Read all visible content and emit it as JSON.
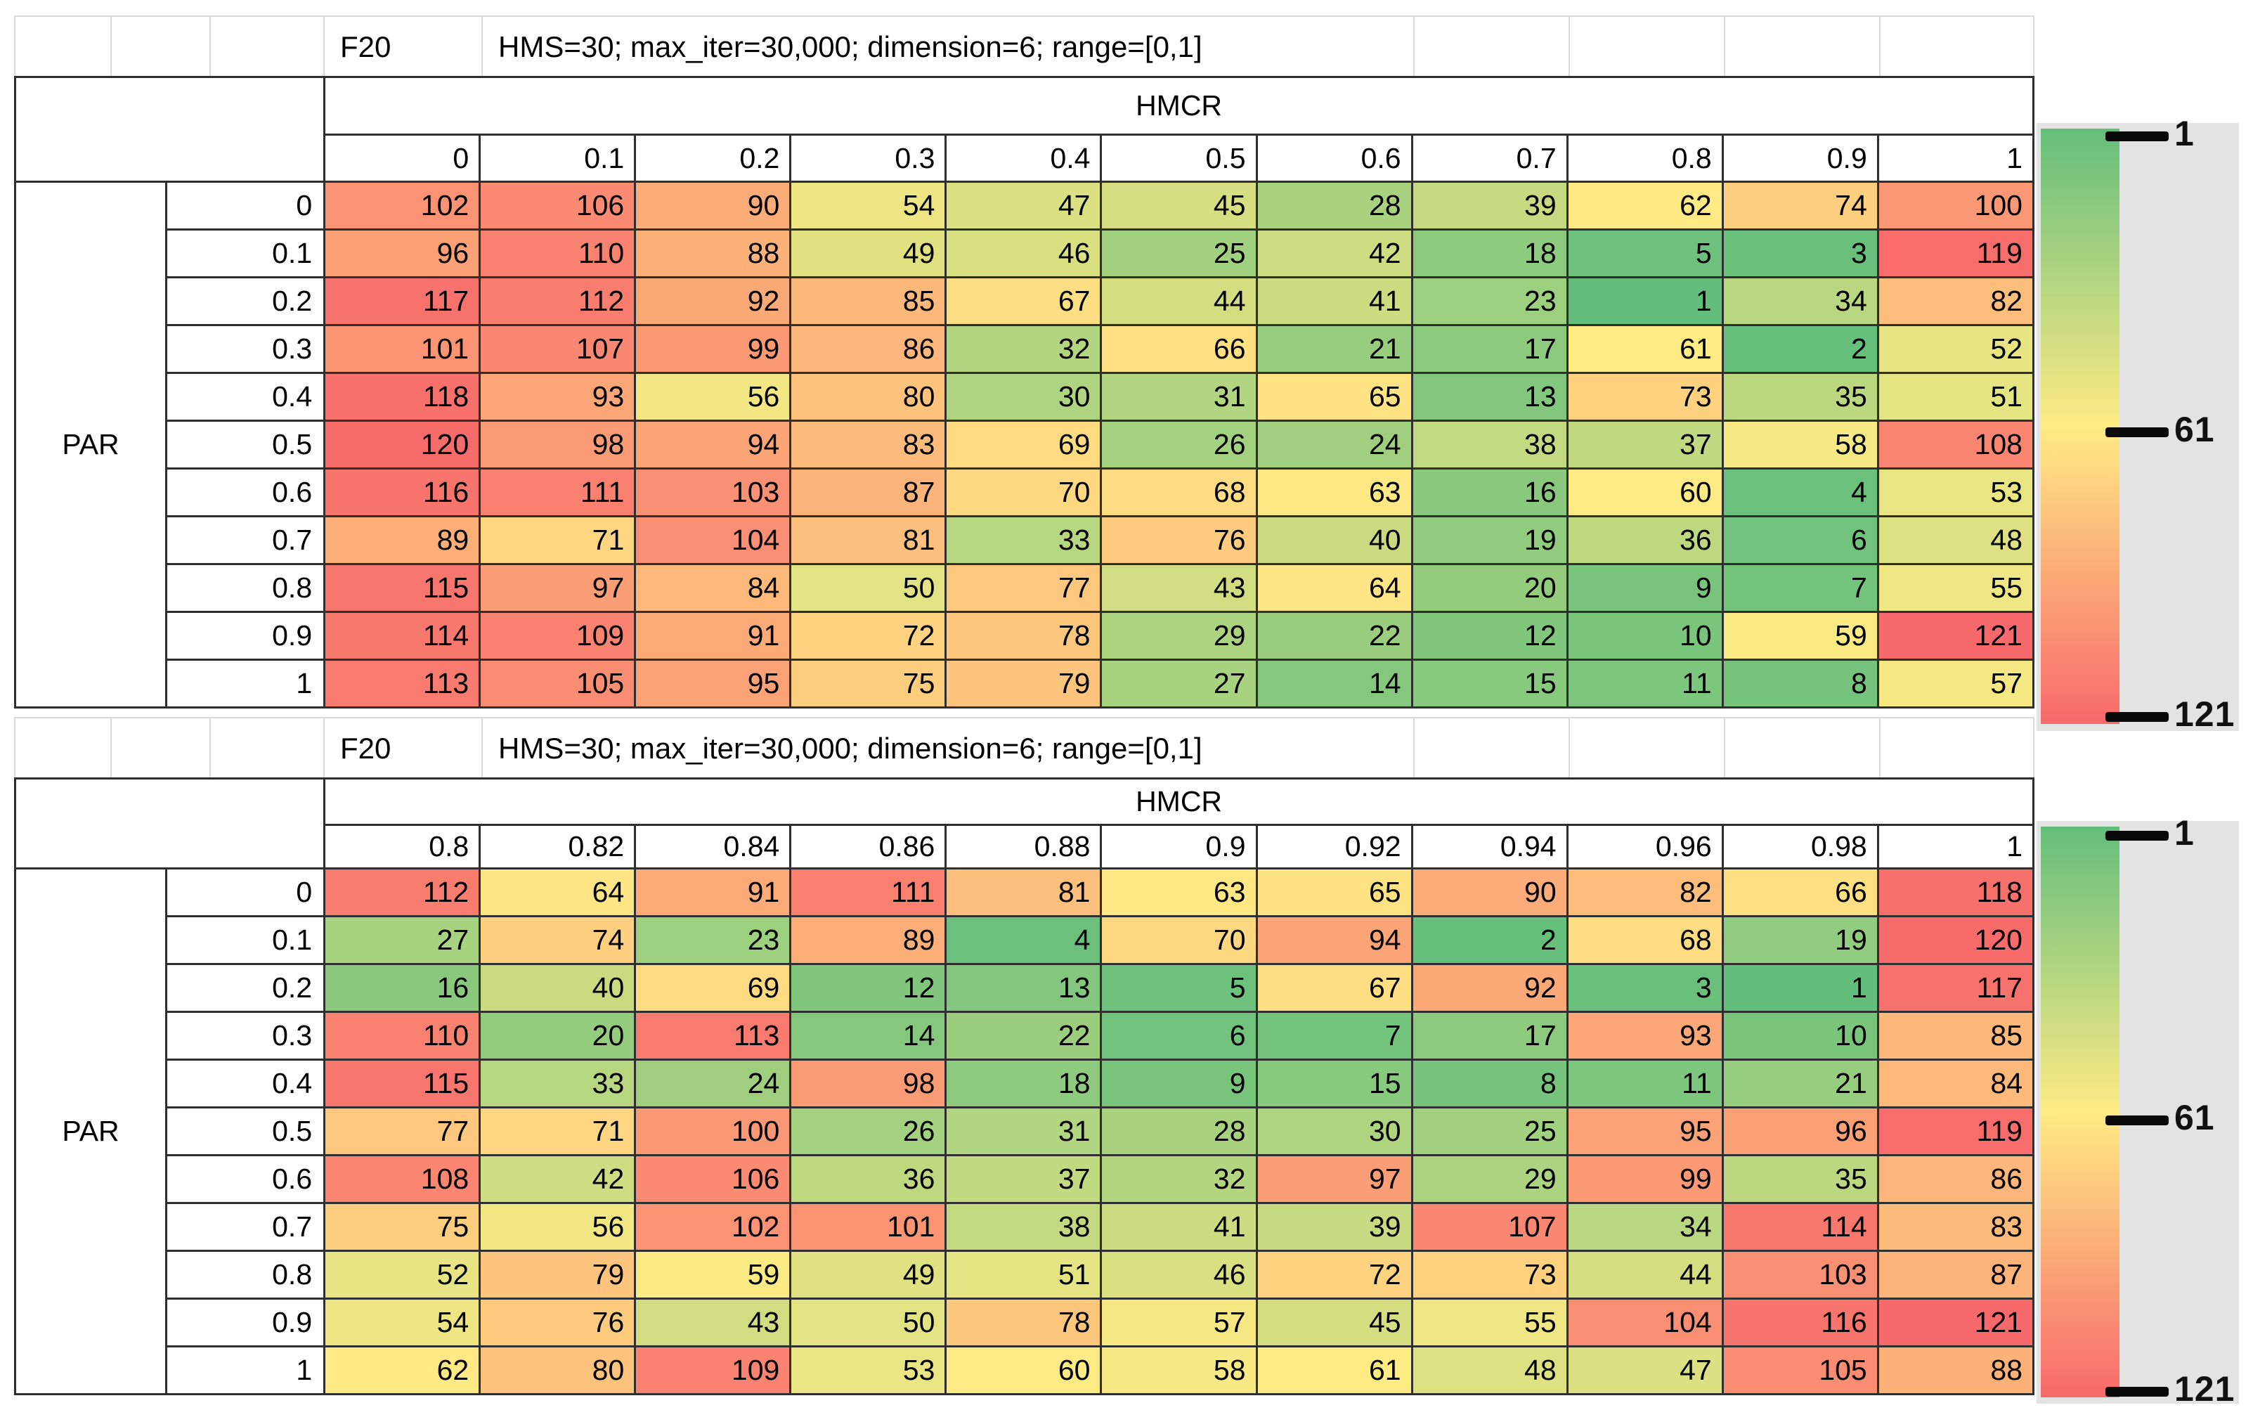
{
  "legend": {
    "panel_color": "#e3e3e3"
  },
  "chart_data": [
    {
      "type": "heatmap",
      "title": "F20",
      "subtitle": "HMS=30; max_iter=30,000; dimension=6; range=[0,1]",
      "x_axis_label": "HMCR",
      "y_axis_label": "PAR",
      "x_ticks": [
        "0",
        "0.1",
        "0.2",
        "0.3",
        "0.4",
        "0.5",
        "0.6",
        "0.7",
        "0.8",
        "0.9",
        "1"
      ],
      "y_ticks": [
        "0",
        "0.1",
        "0.2",
        "0.3",
        "0.4",
        "0.5",
        "0.6",
        "0.7",
        "0.8",
        "0.9",
        "1"
      ],
      "values": [
        [
          102,
          106,
          90,
          54,
          47,
          45,
          28,
          39,
          62,
          74,
          100
        ],
        [
          96,
          110,
          88,
          49,
          46,
          25,
          42,
          18,
          5,
          3,
          119
        ],
        [
          117,
          112,
          92,
          85,
          67,
          44,
          41,
          23,
          1,
          34,
          82
        ],
        [
          101,
          107,
          99,
          86,
          32,
          66,
          21,
          17,
          61,
          2,
          52
        ],
        [
          118,
          93,
          56,
          80,
          30,
          31,
          65,
          13,
          73,
          35,
          51
        ],
        [
          120,
          98,
          94,
          83,
          69,
          26,
          24,
          38,
          37,
          58,
          108
        ],
        [
          116,
          111,
          103,
          87,
          70,
          68,
          63,
          16,
          60,
          4,
          53
        ],
        [
          89,
          71,
          104,
          81,
          33,
          76,
          40,
          19,
          36,
          6,
          48
        ],
        [
          115,
          97,
          84,
          50,
          77,
          43,
          64,
          20,
          9,
          7,
          55
        ],
        [
          114,
          109,
          91,
          72,
          78,
          29,
          22,
          12,
          10,
          59,
          121
        ],
        [
          113,
          105,
          95,
          75,
          79,
          27,
          14,
          15,
          11,
          8,
          57
        ]
      ],
      "color_scale": {
        "anchors": [
          {
            "value": 1,
            "color": "#63be7b"
          },
          {
            "value": 61,
            "color": "#ffeb84"
          },
          {
            "value": 121,
            "color": "#f8696b"
          }
        ],
        "legend_ticks": [
          "1",
          "61",
          "121"
        ],
        "legend_position": "right"
      }
    },
    {
      "type": "heatmap",
      "title": "F20",
      "subtitle": "HMS=30; max_iter=30,000; dimension=6; range=[0,1]",
      "x_axis_label": "HMCR",
      "y_axis_label": "PAR",
      "x_ticks": [
        "0.8",
        "0.82",
        "0.84",
        "0.86",
        "0.88",
        "0.9",
        "0.92",
        "0.94",
        "0.96",
        "0.98",
        "1"
      ],
      "y_ticks": [
        "0",
        "0.1",
        "0.2",
        "0.3",
        "0.4",
        "0.5",
        "0.6",
        "0.7",
        "0.8",
        "0.9",
        "1"
      ],
      "values": [
        [
          112,
          64,
          91,
          111,
          81,
          63,
          65,
          90,
          82,
          66,
          118
        ],
        [
          27,
          74,
          23,
          89,
          4,
          70,
          94,
          2,
          68,
          19,
          120
        ],
        [
          16,
          40,
          69,
          12,
          13,
          5,
          67,
          92,
          3,
          1,
          117
        ],
        [
          110,
          20,
          113,
          14,
          22,
          6,
          7,
          17,
          93,
          10,
          85
        ],
        [
          115,
          33,
          24,
          98,
          18,
          9,
          15,
          8,
          11,
          21,
          84
        ],
        [
          77,
          71,
          100,
          26,
          31,
          28,
          30,
          25,
          95,
          96,
          119
        ],
        [
          108,
          42,
          106,
          36,
          37,
          32,
          97,
          29,
          99,
          35,
          86
        ],
        [
          75,
          56,
          102,
          101,
          38,
          41,
          39,
          107,
          34,
          114,
          83
        ],
        [
          52,
          79,
          59,
          49,
          51,
          46,
          72,
          73,
          44,
          103,
          87
        ],
        [
          54,
          76,
          43,
          50,
          78,
          57,
          45,
          55,
          104,
          116,
          121
        ],
        [
          62,
          80,
          109,
          53,
          60,
          58,
          61,
          48,
          47,
          105,
          88
        ]
      ],
      "color_scale": {
        "anchors": [
          {
            "value": 1,
            "color": "#63be7b"
          },
          {
            "value": 61,
            "color": "#ffeb84"
          },
          {
            "value": 121,
            "color": "#f8696b"
          }
        ],
        "legend_ticks": [
          "1",
          "61",
          "121"
        ],
        "legend_position": "right"
      }
    }
  ]
}
